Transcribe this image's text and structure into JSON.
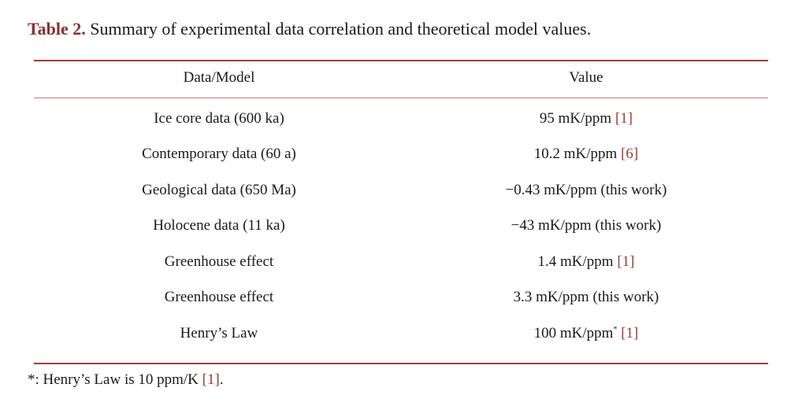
{
  "caption": {
    "label": "Table 2.",
    "text": " Summary of experimental data correlation and theoretical model values."
  },
  "table": {
    "headers": [
      "Data/Model",
      "Value"
    ],
    "rows": [
      {
        "model": "Ice core data (600 ka)",
        "value": "95 mK/ppm",
        "sup": "",
        "ref": "[1]"
      },
      {
        "model": "Contemporary data (60 a)",
        "value": "10.2 mK/ppm",
        "sup": "",
        "ref": "[6]"
      },
      {
        "model": "Geological data (650 Ma)",
        "value": "−0.43 mK/ppm (this work)",
        "sup": "",
        "ref": ""
      },
      {
        "model": "Holocene data (11 ka)",
        "value": "−43 mK/ppm (this work)",
        "sup": "",
        "ref": ""
      },
      {
        "model": "Greenhouse effect",
        "value": "1.4 mK/ppm",
        "sup": "",
        "ref": "[1]"
      },
      {
        "model": "Greenhouse effect",
        "value": "3.3 mK/ppm (this work)",
        "sup": "",
        "ref": ""
      },
      {
        "model": "Henry’s Law",
        "value": "100 mK/ppm",
        "sup": "*",
        "ref": "[1]"
      }
    ]
  },
  "footnote": {
    "text": "*: Henry’s Law is 10 ppm/K ",
    "ref": "[1]",
    "end": "."
  }
}
